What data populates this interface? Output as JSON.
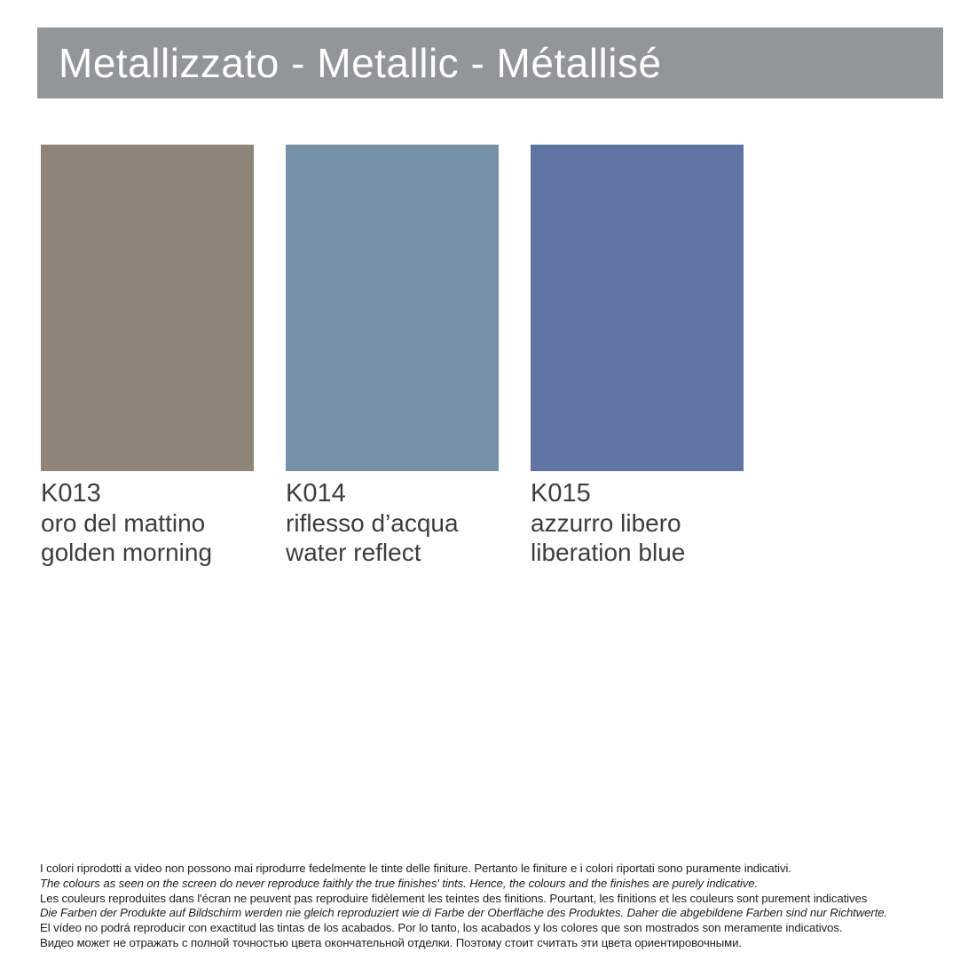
{
  "title": "Metallizzato - Metallic - Métallisé",
  "colors": {
    "banner_bg": "#90969A",
    "banner_text": "#FFFFFF",
    "label_text": "#3D3D3C",
    "disclaimer_text": "#1E1E1E"
  },
  "swatches": [
    {
      "code": "K013",
      "name_local": "oro del mattino",
      "name_english": "golden morning",
      "hex": "#8E8478"
    },
    {
      "code": "K014",
      "name_local": "riflesso d’acqua",
      "name_english": "water reflect",
      "hex": "#7690A8"
    },
    {
      "code": "K015",
      "name_local": "azzurro libero",
      "name_english": "liberation blue",
      "hex": "#6175A5"
    }
  ],
  "disclaimer": {
    "lines": [
      {
        "lang": "it",
        "italic": false,
        "text": "I colori riprodotti a video non possono mai riprodurre fedelmente le tinte delle finiture. Pertanto le finiture e i colori riportati sono puramente indicativi."
      },
      {
        "lang": "en",
        "italic": true,
        "text": "The colours as seen on the screen do never reproduce faithly the true finishes' tints. Hence, the colours and the finishes are purely indicative."
      },
      {
        "lang": "fr",
        "italic": false,
        "text": "Les couleurs reproduites dans l'écran ne peuvent pas reproduire fidèlement les teintes des finitions. Pourtant, les finitions et les couleurs sont purement indicatives"
      },
      {
        "lang": "de",
        "italic": true,
        "text": "Die Farben der Produkte auf Bildschirm werden nie gleich reproduziert wie di Farbe der Oberfläche des Produktes. Daher die abgebildene Farben sind nur Richtwerte."
      },
      {
        "lang": "es",
        "italic": false,
        "text": "El vídeo no podrá reproducir con exactitud las tintas de los acabados. Por lo tanto, los acabados y los colores que son mostrados son meramente indicativos."
      },
      {
        "lang": "ru",
        "italic": false,
        "text": "Видео может не отражать с полной точностью цвета окончательной отделки. Поэтому стоит считать эти цвета ориентировочными."
      }
    ]
  }
}
